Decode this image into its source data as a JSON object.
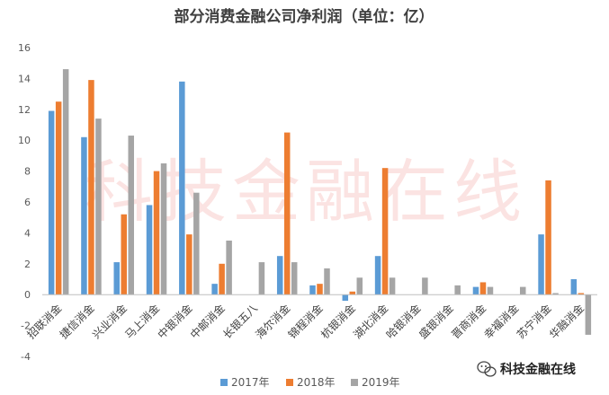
{
  "chart_data": {
    "type": "bar",
    "title": "部分消费金融公司净利润（单位：亿）",
    "categories": [
      "招联消金",
      "捷信消金",
      "兴业消金",
      "马上消金",
      "中银消金",
      "中邮消金",
      "长银五八",
      "海尔消金",
      "锦程消金",
      "杭银消金",
      "湖北消金",
      "哈银消金",
      "盛银消金",
      "晋商消金",
      "幸福消金",
      "苏宁消金",
      "华融消金"
    ],
    "series": [
      {
        "name": "2017年",
        "color": "#5B9BD5",
        "values": [
          11.9,
          10.2,
          2.1,
          5.8,
          13.8,
          0.7,
          null,
          2.5,
          0.6,
          -0.4,
          2.5,
          null,
          null,
          0.5,
          null,
          3.9,
          1.0
        ]
      },
      {
        "name": "2018年",
        "color": "#ED7D31",
        "values": [
          12.5,
          13.9,
          5.2,
          8.0,
          3.9,
          2.0,
          null,
          10.5,
          0.7,
          0.2,
          8.2,
          null,
          null,
          0.8,
          null,
          7.4,
          0.1
        ]
      },
      {
        "name": "2019年",
        "color": "#A5A5A5",
        "values": [
          14.6,
          11.4,
          10.3,
          8.5,
          6.6,
          3.5,
          2.1,
          2.1,
          1.7,
          1.1,
          1.1,
          1.1,
          0.6,
          0.5,
          0.5,
          0.1,
          -2.6
        ]
      }
    ],
    "ylim": [
      -4,
      16
    ],
    "yticks": [
      -4,
      -2,
      0,
      2,
      4,
      6,
      8,
      10,
      12,
      14,
      16
    ],
    "xlabel": "",
    "ylabel": "",
    "grid": false,
    "legend": "bottom"
  },
  "watermark": "科技金融在线",
  "brand": {
    "icon": "wechat-icon",
    "label": "科技金融在线"
  }
}
